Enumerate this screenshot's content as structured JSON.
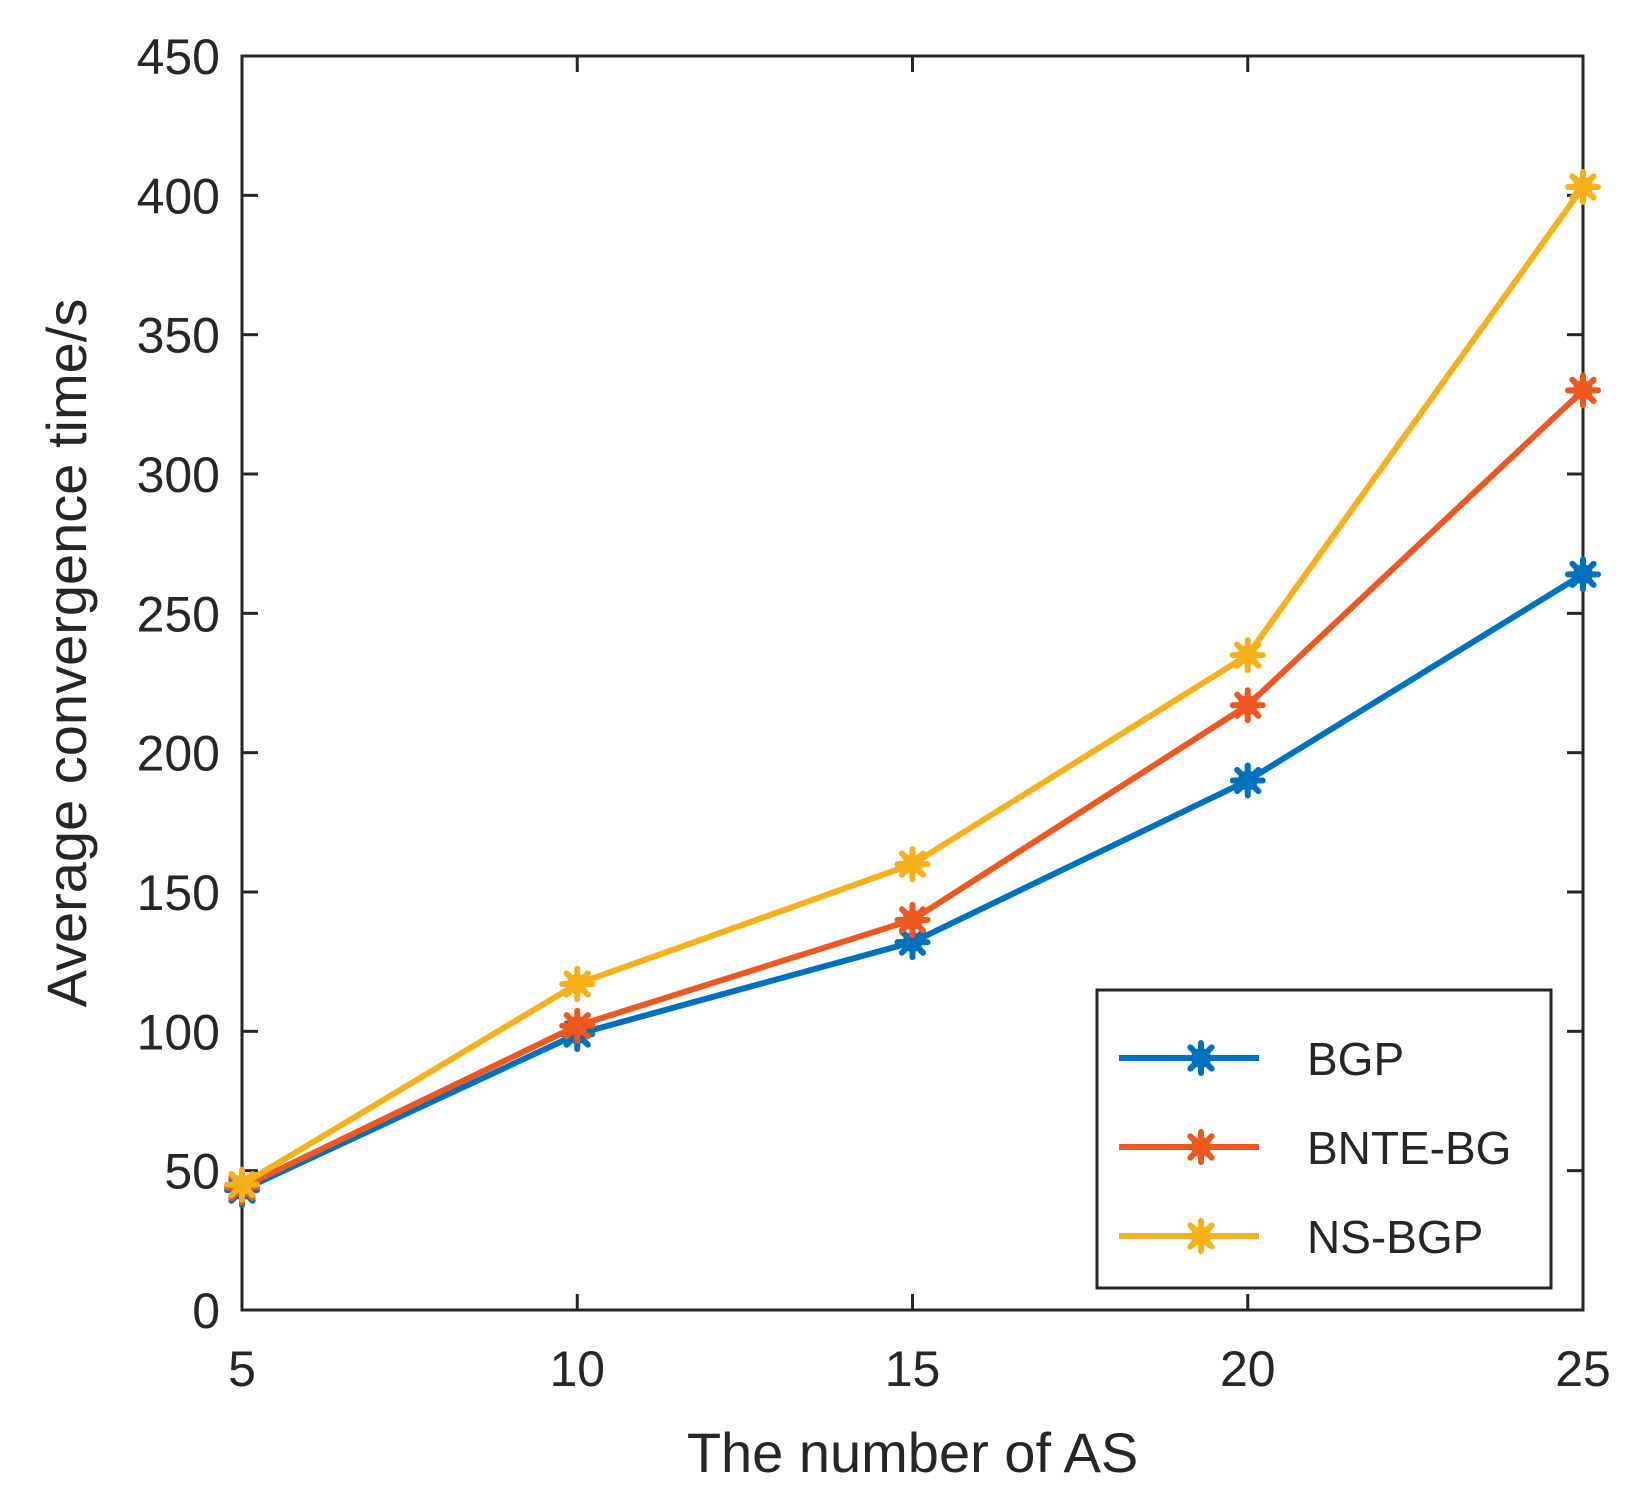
{
  "chart_data": {
    "type": "line",
    "title": "",
    "xlabel": "The number of AS",
    "ylabel": "Average convergence time/s",
    "x": [
      5,
      10,
      15,
      20,
      25
    ],
    "xlim": [
      5,
      25
    ],
    "ylim": [
      0,
      450
    ],
    "xticks": [
      5,
      10,
      15,
      20,
      25
    ],
    "yticks": [
      0,
      50,
      100,
      150,
      200,
      250,
      300,
      350,
      400,
      450
    ],
    "xtick_labels": [
      "5",
      "10",
      "15",
      "20",
      "25"
    ],
    "ytick_labels": [
      "0",
      "50",
      "100",
      "150",
      "200",
      "250",
      "300",
      "350",
      "400",
      "450"
    ],
    "grid": false,
    "legend_position": "bottom-right",
    "series": [
      {
        "name": "BGP",
        "color": "#0072BD",
        "marker": "asterisk",
        "values": [
          43,
          99,
          132,
          190,
          264
        ]
      },
      {
        "name": "BNTE-BG",
        "color": "#ED5821",
        "marker": "asterisk",
        "values": [
          44,
          102,
          140,
          217,
          330
        ]
      },
      {
        "name": "NS-BGP",
        "color": "#F5B01A",
        "marker": "asterisk",
        "values": [
          45,
          117,
          160,
          235,
          403
        ]
      }
    ]
  }
}
